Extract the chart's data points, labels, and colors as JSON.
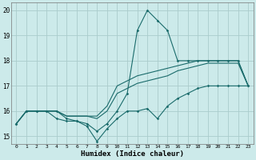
{
  "xlabel": "Humidex (Indice chaleur)",
  "xlim": [
    -0.5,
    23.5
  ],
  "ylim": [
    14.7,
    20.3
  ],
  "yticks": [
    15,
    16,
    17,
    18,
    19,
    20
  ],
  "xticks": [
    0,
    1,
    2,
    3,
    4,
    5,
    6,
    7,
    8,
    9,
    10,
    11,
    12,
    13,
    14,
    15,
    16,
    17,
    18,
    19,
    20,
    21,
    22,
    23
  ],
  "bg_color": "#cceaea",
  "grid_color": "#aacccc",
  "line_color": "#1a6b6b",
  "hours": [
    0,
    1,
    2,
    3,
    4,
    5,
    6,
    7,
    8,
    9,
    10,
    11,
    12,
    13,
    14,
    15,
    16,
    17,
    18,
    19,
    20,
    21,
    22,
    23
  ],
  "curve_main": [
    15.5,
    16.0,
    16.0,
    16.0,
    16.0,
    15.7,
    15.6,
    15.5,
    15.2,
    15.5,
    16.0,
    16.7,
    19.2,
    20.0,
    19.6,
    19.2,
    18.0,
    18.0,
    18.0,
    18.0,
    18.0,
    18.0,
    18.0,
    17.0
  ],
  "curve_low": [
    15.5,
    16.0,
    16.0,
    16.0,
    15.7,
    15.6,
    15.6,
    15.4,
    14.8,
    15.3,
    15.7,
    16.0,
    16.0,
    16.1,
    15.7,
    16.2,
    16.5,
    16.7,
    16.9,
    17.0,
    17.0,
    17.0,
    17.0,
    17.0
  ],
  "curve_upper": [
    15.5,
    16.0,
    16.0,
    16.0,
    16.0,
    15.8,
    15.8,
    15.8,
    15.8,
    16.2,
    17.0,
    17.2,
    17.4,
    17.5,
    17.6,
    17.7,
    17.8,
    17.9,
    18.0,
    18.0,
    18.0,
    18.0,
    18.0,
    17.0
  ],
  "curve_mid": [
    15.5,
    16.0,
    16.0,
    16.0,
    16.0,
    15.8,
    15.8,
    15.8,
    15.7,
    16.0,
    16.7,
    16.9,
    17.1,
    17.2,
    17.3,
    17.4,
    17.6,
    17.7,
    17.8,
    17.9,
    17.9,
    17.9,
    17.9,
    17.0
  ]
}
